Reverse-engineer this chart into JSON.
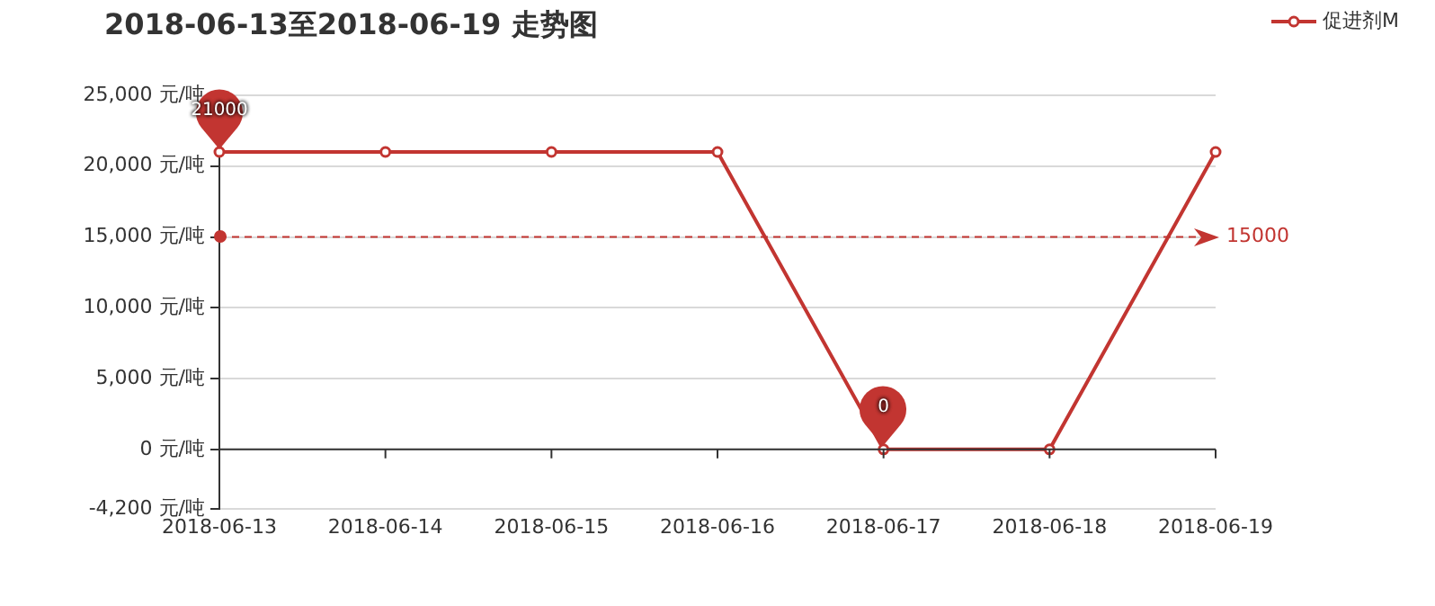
{
  "chart_data": {
    "type": "line",
    "title": "2018-06-13至2018-06-19 走势图",
    "categories": [
      "2018-06-13",
      "2018-06-14",
      "2018-06-15",
      "2018-06-16",
      "2018-06-17",
      "2018-06-18",
      "2018-06-19"
    ],
    "series": [
      {
        "name": "促进剂M",
        "color": "#c23531",
        "values": [
          21000,
          21000,
          21000,
          21000,
          0,
          0,
          21000
        ]
      }
    ],
    "ylim": [
      -4200,
      25000
    ],
    "yticks": [
      {
        "value": -4200,
        "label": "-4,200 元/吨"
      },
      {
        "value": 0,
        "label": "0 元/吨"
      },
      {
        "value": 5000,
        "label": "5,000 元/吨"
      },
      {
        "value": 10000,
        "label": "10,000 元/吨"
      },
      {
        "value": 15000,
        "label": "15,000 元/吨"
      },
      {
        "value": 20000,
        "label": "20,000 元/吨"
      },
      {
        "value": 25000,
        "label": "25,000 元/吨"
      }
    ],
    "annotations": [
      {
        "text": "21000",
        "x": "2018-06-13",
        "y": 21000
      },
      {
        "text": "0",
        "x": "2018-06-17",
        "y": 0
      }
    ],
    "ref_lines": [
      {
        "axis": "y",
        "value": 15000,
        "label": "15000",
        "color": "#c23531",
        "line_style": "dashed"
      }
    ],
    "grid": "y",
    "legend": "top right",
    "marker": "circle",
    "line_style": "solid"
  }
}
